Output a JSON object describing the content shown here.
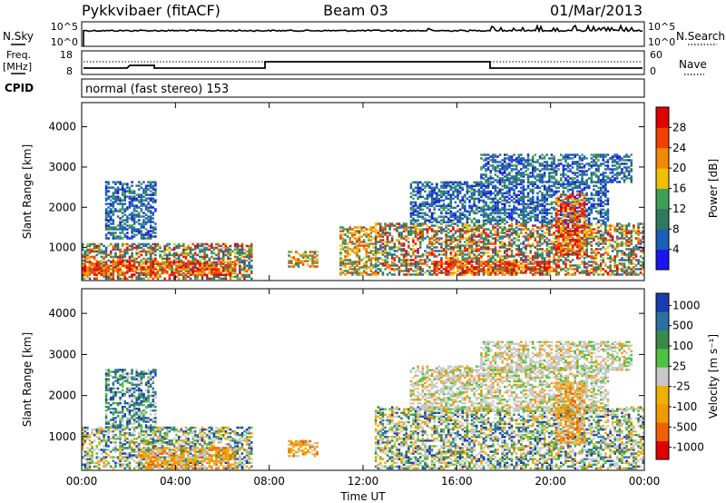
{
  "header": {
    "radar": "Pykkvibaer (fitACF)",
    "beam": "Beam 03",
    "date": "01/Mar/2013"
  },
  "sky_panel": {
    "left_label": "N.Sky",
    "left_ticks": [
      "10^5",
      "10^0"
    ],
    "right_label": "N.Search",
    "right_ticks": [
      "10^5",
      "10^0"
    ]
  },
  "freq_panel": {
    "left_label_line1": "Freq.",
    "left_label_line2": "[MHz]",
    "left_ticks": [
      "18",
      "8"
    ],
    "right_label": "Nave",
    "right_ticks": [
      "60",
      "0"
    ],
    "cpid_label": "CPID",
    "mode_text": "normal (fast stereo) 153"
  },
  "chart_data": [
    {
      "type": "heatmap",
      "title": "",
      "xlabel": "Time UT",
      "ylabel": "Slant Range [km]",
      "x_ticks": [
        "00:00",
        "04:00",
        "08:00",
        "12:00",
        "16:00",
        "20:00",
        "00:00"
      ],
      "x_range_hours": [
        0,
        24
      ],
      "y_ticks": [
        1000,
        2000,
        3000,
        4000
      ],
      "ylim": [
        180,
        4600
      ],
      "colorbar": {
        "label": "Power [dB]",
        "ticks": [
          "28",
          "24",
          "20",
          "16",
          "12",
          "8",
          "4"
        ],
        "colors": [
          "#1c14f0",
          "#1a5fb8",
          "#2f7a5e",
          "#3fa055",
          "#f0c000",
          "#f08a00",
          "#f04000",
          "#e00000"
        ]
      },
      "echo_regions": [
        {
          "t0": 0.0,
          "t1": 7.2,
          "r0": 200,
          "r1": 1100,
          "level": "mixed"
        },
        {
          "t0": 0.0,
          "t1": 6.5,
          "r0": 300,
          "r1": 650,
          "level": "strong"
        },
        {
          "t0": 1.0,
          "t1": 3.2,
          "r0": 1200,
          "r1": 2600,
          "level": "weak"
        },
        {
          "t0": 8.8,
          "t1": 10.0,
          "r0": 500,
          "r1": 900,
          "level": "medium"
        },
        {
          "t0": 11.0,
          "t1": 12.5,
          "r0": 300,
          "r1": 1500,
          "level": "medium"
        },
        {
          "t0": 12.5,
          "t1": 24.0,
          "r0": 300,
          "r1": 1600,
          "level": "mixed"
        },
        {
          "t0": 15.0,
          "t1": 20.0,
          "r0": 300,
          "r1": 650,
          "level": "strong"
        },
        {
          "t0": 14.0,
          "t1": 22.5,
          "r0": 1600,
          "r1": 2600,
          "level": "weak"
        },
        {
          "t0": 17.0,
          "t1": 23.5,
          "r0": 2600,
          "r1": 3300,
          "level": "weak"
        },
        {
          "t0": 20.2,
          "t1": 21.5,
          "r0": 800,
          "r1": 2300,
          "level": "strong"
        }
      ]
    },
    {
      "type": "heatmap",
      "title": "",
      "xlabel": "Time UT",
      "ylabel": "Slant Range [km]",
      "x_ticks": [
        "00:00",
        "04:00",
        "08:00",
        "12:00",
        "16:00",
        "20:00",
        "00:00"
      ],
      "x_range_hours": [
        0,
        24
      ],
      "y_ticks": [
        1000,
        2000,
        3000,
        4000
      ],
      "ylim": [
        180,
        4600
      ],
      "colorbar": {
        "label": "Velocity [m s⁻¹]",
        "ticks": [
          "1000",
          "500",
          "100",
          "25",
          "-25",
          "-100",
          "-500",
          "-1000"
        ],
        "colors": [
          "#e00000",
          "#f06000",
          "#f09a00",
          "#f0b000",
          "#c8c8c8",
          "#50c040",
          "#3a8a4a",
          "#2a70a0",
          "#1a3ab0"
        ]
      },
      "echo_regions": [
        {
          "t0": 0.0,
          "t1": 7.2,
          "r0": 200,
          "r1": 1200,
          "level": "mixed"
        },
        {
          "t0": 2.5,
          "t1": 6.5,
          "r0": 200,
          "r1": 700,
          "level": "negative"
        },
        {
          "t0": 1.0,
          "t1": 3.2,
          "r0": 1200,
          "r1": 2600,
          "level": "positive"
        },
        {
          "t0": 8.8,
          "t1": 10.0,
          "r0": 500,
          "r1": 900,
          "level": "negative"
        },
        {
          "t0": 12.5,
          "t1": 24.0,
          "r0": 200,
          "r1": 1700,
          "level": "mixed"
        },
        {
          "t0": 14.0,
          "t1": 22.5,
          "r0": 1600,
          "r1": 2700,
          "level": "zero"
        },
        {
          "t0": 17.0,
          "t1": 23.5,
          "r0": 2600,
          "r1": 3300,
          "level": "zero"
        },
        {
          "t0": 20.2,
          "t1": 21.5,
          "r0": 800,
          "r1": 2300,
          "level": "negative"
        }
      ]
    }
  ]
}
